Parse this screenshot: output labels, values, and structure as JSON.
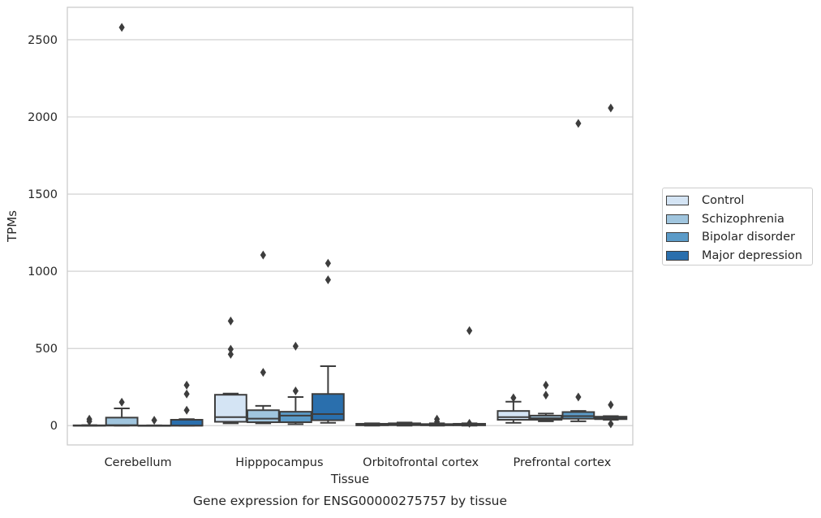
{
  "chart_data": {
    "type": "box",
    "title": "Gene expression for ENSG00000275757 by tissue",
    "xlabel": "Tissue",
    "ylabel": "TPMs",
    "ylim": [
      -125,
      2710
    ],
    "yticks": [
      0,
      500,
      1000,
      1500,
      2000,
      2500
    ],
    "grid": true,
    "legend_placement": "right",
    "categories": [
      "Cerebellum",
      "Hipppocampus",
      "Orbitofrontal cortex",
      "Prefrontal cortex"
    ],
    "series": [
      {
        "name": "Control",
        "color": "#d4e4f4",
        "boxes": [
          {
            "q1": 0,
            "median": 0,
            "q3": 2,
            "whisker_low": 0,
            "whisker_high": 3,
            "outliers": [
              28,
              42
            ]
          },
          {
            "q1": 25,
            "median": 55,
            "q3": 200,
            "whisker_low": 15,
            "whisker_high": 208,
            "outliers": [
              462,
              495,
              678
            ]
          },
          {
            "q1": 2,
            "median": 6,
            "q3": 12,
            "whisker_low": 0,
            "whisker_high": 15,
            "outliers": []
          },
          {
            "q1": 38,
            "median": 55,
            "q3": 95,
            "whisker_low": 18,
            "whisker_high": 155,
            "outliers": [
              180
            ]
          }
        ]
      },
      {
        "name": "Schizophrenia",
        "color": "#a0c5de",
        "boxes": [
          {
            "q1": 0,
            "median": 3,
            "q3": 52,
            "whisker_low": 0,
            "whisker_high": 112,
            "outliers": [
              152,
              2580
            ]
          },
          {
            "q1": 22,
            "median": 45,
            "q3": 100,
            "whisker_low": 15,
            "whisker_high": 128,
            "outliers": [
              345,
              1105
            ]
          },
          {
            "q1": 3,
            "median": 8,
            "q3": 15,
            "whisker_low": 0,
            "whisker_high": 20,
            "outliers": []
          },
          {
            "q1": 38,
            "median": 48,
            "q3": 65,
            "whisker_low": 28,
            "whisker_high": 78,
            "outliers": [
              198,
              262
            ]
          }
        ]
      },
      {
        "name": "Bipolar disorder",
        "color": "#5b9bc8",
        "boxes": [
          {
            "q1": 0,
            "median": 0,
            "q3": 1,
            "whisker_low": 0,
            "whisker_high": 2,
            "outliers": [
              35
            ]
          },
          {
            "q1": 22,
            "median": 65,
            "q3": 90,
            "whisker_low": 10,
            "whisker_high": 185,
            "outliers": [
              225,
              515
            ]
          },
          {
            "q1": 2,
            "median": 5,
            "q3": 10,
            "whisker_low": 0,
            "whisker_high": 15,
            "outliers": [
              25,
              42
            ]
          },
          {
            "q1": 45,
            "median": 62,
            "q3": 88,
            "whisker_low": 28,
            "whisker_high": 95,
            "outliers": [
              185,
              1958
            ]
          }
        ]
      },
      {
        "name": "Major depression",
        "color": "#2a6fad",
        "boxes": [
          {
            "q1": 0,
            "median": 0,
            "q3": 38,
            "whisker_low": 0,
            "whisker_high": 42,
            "outliers": [
              100,
              205,
              262
            ]
          },
          {
            "q1": 35,
            "median": 75,
            "q3": 205,
            "whisker_low": 18,
            "whisker_high": 385,
            "outliers": [
              945,
              1052
            ]
          },
          {
            "q1": 2,
            "median": 6,
            "q3": 12,
            "whisker_low": 0,
            "whisker_high": 15,
            "outliers": [
              15,
              615
            ]
          },
          {
            "q1": 42,
            "median": 48,
            "q3": 58,
            "whisker_low": 38,
            "whisker_high": 62,
            "outliers": [
              12,
              135,
              2058
            ]
          }
        ]
      }
    ]
  }
}
